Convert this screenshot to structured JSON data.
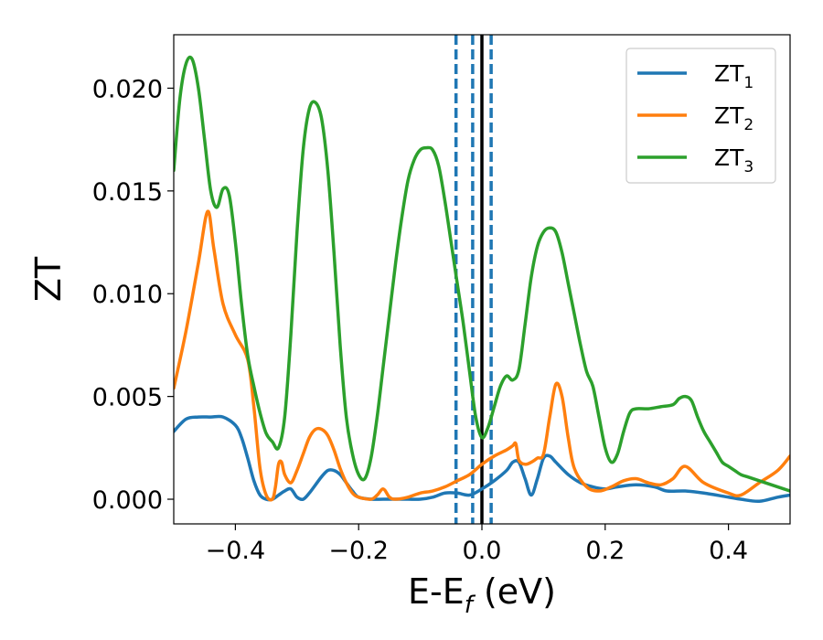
{
  "chart_data": {
    "type": "line",
    "xlabel": {
      "main": "E-E",
      "sub": "f",
      "suffix": " (eV)"
    },
    "ylabel": "ZT",
    "xlim": [
      -0.5,
      0.5
    ],
    "ylim": [
      -0.0012,
      0.0226
    ],
    "xticks": [
      -0.4,
      -0.2,
      0.0,
      0.2,
      0.4
    ],
    "xtick_labels": [
      "−0.4",
      "−0.2",
      "0.0",
      "0.2",
      "0.4"
    ],
    "yticks": [
      0.0,
      0.005,
      0.01,
      0.015,
      0.02
    ],
    "ytick_labels": [
      "0.000",
      "0.005",
      "0.010",
      "0.015",
      "0.020"
    ],
    "grid": false,
    "legend_position": "top-right",
    "vertical_lines": [
      {
        "x": -0.042,
        "style": "dashed",
        "color": "#1f77b4"
      },
      {
        "x": -0.015,
        "style": "dashed",
        "color": "#1f77b4"
      },
      {
        "x": 0.0,
        "style": "solid",
        "color": "#000000"
      },
      {
        "x": 0.015,
        "style": "dashed",
        "color": "#1f77b4"
      }
    ],
    "series": [
      {
        "name": "ZT",
        "name_sub": "1",
        "color": "#1f77b4",
        "x": [
          -0.5,
          -0.48,
          -0.46,
          -0.44,
          -0.42,
          -0.4,
          -0.39,
          -0.38,
          -0.37,
          -0.36,
          -0.35,
          -0.34,
          -0.33,
          -0.32,
          -0.31,
          -0.3,
          -0.29,
          -0.28,
          -0.27,
          -0.26,
          -0.25,
          -0.24,
          -0.23,
          -0.22,
          -0.21,
          -0.2,
          -0.18,
          -0.16,
          -0.14,
          -0.12,
          -0.1,
          -0.08,
          -0.06,
          -0.04,
          -0.02,
          0.0,
          0.02,
          0.04,
          0.05,
          0.06,
          0.07,
          0.08,
          0.09,
          0.1,
          0.11,
          0.12,
          0.14,
          0.16,
          0.18,
          0.2,
          0.22,
          0.25,
          0.28,
          0.3,
          0.33,
          0.36,
          0.4,
          0.42,
          0.45,
          0.48,
          0.5
        ],
        "y": [
          0.0033,
          0.0039,
          0.004,
          0.004,
          0.004,
          0.0036,
          0.003,
          0.002,
          0.0009,
          0.0002,
          0.0,
          0.0,
          0.0002,
          0.0004,
          0.0005,
          0.0001,
          0.0,
          0.0003,
          0.0007,
          0.0011,
          0.0014,
          0.0014,
          0.0012,
          0.0008,
          0.0004,
          0.0001,
          0.0,
          0.0,
          0.0,
          0.0,
          0.0,
          0.0001,
          0.0003,
          0.0003,
          0.0002,
          0.0005,
          0.0009,
          0.0014,
          0.0018,
          0.0018,
          0.001,
          0.0002,
          0.001,
          0.002,
          0.0021,
          0.0018,
          0.0012,
          0.0008,
          0.0006,
          0.0005,
          0.0006,
          0.0007,
          0.0006,
          0.0004,
          0.0004,
          0.0003,
          0.0001,
          0.0,
          -0.0001,
          0.0001,
          0.0002
        ]
      },
      {
        "name": "ZT",
        "name_sub": "2",
        "color": "#ff7f0e",
        "x": [
          -0.5,
          -0.48,
          -0.46,
          -0.445,
          -0.435,
          -0.42,
          -0.4,
          -0.38,
          -0.37,
          -0.36,
          -0.35,
          -0.34,
          -0.335,
          -0.33,
          -0.325,
          -0.32,
          -0.31,
          -0.3,
          -0.29,
          -0.28,
          -0.27,
          -0.26,
          -0.25,
          -0.24,
          -0.23,
          -0.22,
          -0.21,
          -0.2,
          -0.18,
          -0.17,
          -0.16,
          -0.15,
          -0.14,
          -0.12,
          -0.1,
          -0.08,
          -0.06,
          -0.04,
          -0.02,
          0.0,
          0.02,
          0.04,
          0.05,
          0.055,
          0.06,
          0.07,
          0.08,
          0.09,
          0.1,
          0.11,
          0.12,
          0.13,
          0.14,
          0.15,
          0.17,
          0.19,
          0.21,
          0.23,
          0.25,
          0.27,
          0.29,
          0.31,
          0.33,
          0.36,
          0.4,
          0.42,
          0.45,
          0.48,
          0.5
        ],
        "y": [
          0.0054,
          0.0082,
          0.0115,
          0.014,
          0.0122,
          0.0095,
          0.008,
          0.0068,
          0.0045,
          0.0015,
          0.0002,
          0.0,
          0.0006,
          0.0017,
          0.0018,
          0.0012,
          0.0008,
          0.0014,
          0.0022,
          0.003,
          0.0034,
          0.0034,
          0.0031,
          0.0024,
          0.0015,
          0.0008,
          0.0003,
          0.0001,
          0.0,
          0.0002,
          0.0005,
          0.0001,
          0.0,
          0.0001,
          0.0003,
          0.0004,
          0.0006,
          0.0009,
          0.0012,
          0.0017,
          0.0021,
          0.0024,
          0.0026,
          0.0027,
          0.0019,
          0.0017,
          0.0018,
          0.002,
          0.0022,
          0.004,
          0.0056,
          0.005,
          0.003,
          0.0015,
          0.0006,
          0.0004,
          0.0006,
          0.0009,
          0.001,
          0.0008,
          0.0007,
          0.001,
          0.0016,
          0.0008,
          0.0003,
          0.0002,
          0.0008,
          0.0014,
          0.0021
        ]
      },
      {
        "name": "ZT",
        "name_sub": "3",
        "color": "#2ca02c",
        "x": [
          -0.5,
          -0.49,
          -0.48,
          -0.47,
          -0.46,
          -0.45,
          -0.44,
          -0.43,
          -0.42,
          -0.41,
          -0.4,
          -0.39,
          -0.38,
          -0.37,
          -0.36,
          -0.35,
          -0.34,
          -0.33,
          -0.32,
          -0.31,
          -0.3,
          -0.29,
          -0.28,
          -0.27,
          -0.26,
          -0.25,
          -0.24,
          -0.23,
          -0.22,
          -0.21,
          -0.2,
          -0.19,
          -0.18,
          -0.17,
          -0.16,
          -0.15,
          -0.14,
          -0.13,
          -0.12,
          -0.11,
          -0.1,
          -0.09,
          -0.08,
          -0.07,
          -0.06,
          -0.05,
          -0.04,
          -0.03,
          -0.02,
          -0.01,
          0.0,
          0.01,
          0.02,
          0.03,
          0.04,
          0.05,
          0.06,
          0.07,
          0.08,
          0.09,
          0.1,
          0.11,
          0.12,
          0.13,
          0.14,
          0.15,
          0.16,
          0.17,
          0.18,
          0.19,
          0.2,
          0.21,
          0.22,
          0.23,
          0.24,
          0.25,
          0.27,
          0.29,
          0.31,
          0.32,
          0.33,
          0.34,
          0.35,
          0.36,
          0.37,
          0.38,
          0.39,
          0.4,
          0.41,
          0.42,
          0.43,
          0.44,
          0.45,
          0.46,
          0.47,
          0.48,
          0.49,
          0.5
        ],
        "y": [
          0.016,
          0.0195,
          0.0212,
          0.0214,
          0.02,
          0.0175,
          0.015,
          0.0142,
          0.0151,
          0.0148,
          0.0125,
          0.0095,
          0.007,
          0.0055,
          0.0042,
          0.0032,
          0.0028,
          0.0025,
          0.004,
          0.008,
          0.013,
          0.017,
          0.019,
          0.0193,
          0.0185,
          0.016,
          0.012,
          0.0075,
          0.004,
          0.0022,
          0.0012,
          0.001,
          0.002,
          0.004,
          0.0065,
          0.009,
          0.0115,
          0.0137,
          0.0155,
          0.0165,
          0.017,
          0.0171,
          0.017,
          0.0162,
          0.0145,
          0.0125,
          0.0105,
          0.0085,
          0.0062,
          0.004,
          0.003,
          0.0035,
          0.0045,
          0.0055,
          0.006,
          0.0058,
          0.0063,
          0.0085,
          0.0108,
          0.0123,
          0.013,
          0.0132,
          0.013,
          0.012,
          0.0105,
          0.009,
          0.0075,
          0.0062,
          0.0055,
          0.004,
          0.0025,
          0.0018,
          0.0022,
          0.0033,
          0.0042,
          0.0044,
          0.0044,
          0.0045,
          0.0046,
          0.0049,
          0.005,
          0.0048,
          0.004,
          0.0033,
          0.0028,
          0.0023,
          0.0018,
          0.0016,
          0.0014,
          0.0012,
          0.0011,
          0.001,
          0.0009,
          0.0008,
          0.0007,
          0.0006,
          0.0005,
          0.0004
        ]
      }
    ]
  }
}
